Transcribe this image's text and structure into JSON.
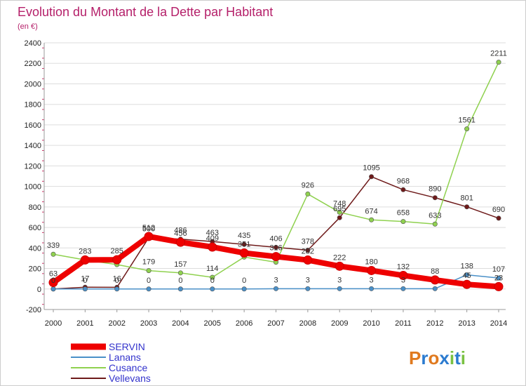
{
  "header": {
    "title": "Evolution du Montant de la Dette par Habitant",
    "subtitle": "(en €)"
  },
  "logo": {
    "text": "Proxiti",
    "colors": [
      "#e07a1f",
      "#2b7bd0",
      "#e07a1f",
      "#2b7bd0",
      "#7ac143",
      "#2b7bd0",
      "#7ac143"
    ]
  },
  "chart_data": {
    "type": "line",
    "title": "Evolution du Montant de la Dette par Habitant",
    "subtitle": "(en €)",
    "xlabel": "",
    "ylabel": "",
    "x": [
      "2000",
      "2001",
      "2002",
      "2003",
      "2004",
      "2005",
      "2006",
      "2007",
      "2008",
      "2009",
      "2010",
      "2011",
      "2012",
      "2013",
      "2014"
    ],
    "ylim": [
      -200,
      2400
    ],
    "yticks": [
      -200,
      0,
      200,
      400,
      600,
      800,
      1000,
      1200,
      1400,
      1600,
      1800,
      2000,
      2200,
      2400
    ],
    "grid": true,
    "legend_position": "bottom-left",
    "series": [
      {
        "name": "SERVIN",
        "color": "#ee0000",
        "values": [
          63,
          283,
          285,
          512,
          456,
          409,
          351,
          316,
          282,
          222,
          180,
          132,
          88,
          45,
          23
        ],
        "labels": [
          "63",
          "283",
          "285",
          "512",
          "456",
          "409",
          "351",
          "316",
          "282",
          "222",
          "180",
          "132",
          "88",
          "45",
          "23"
        ]
      },
      {
        "name": "Lanans",
        "color": "#4a90c8",
        "values": [
          0,
          0,
          0,
          0,
          0,
          0,
          0,
          3,
          3,
          3,
          3,
          3,
          3,
          138,
          107
        ],
        "labels": [
          "0",
          "0",
          "0",
          "0",
          "0",
          "0",
          "0",
          "3",
          "3",
          "3",
          "3",
          "3",
          "",
          "138",
          "107"
        ]
      },
      {
        "name": "Cusance",
        "color": "#8fd14f",
        "values": [
          339,
          283,
          238,
          179,
          157,
          114,
          311,
          261,
          926,
          748,
          674,
          658,
          633,
          1561,
          2211
        ],
        "labels": [
          "339",
          "",
          "",
          "179",
          "157",
          "114",
          "",
          "",
          "926",
          "748",
          "674",
          "658",
          "633",
          "1561",
          "2211"
        ]
      },
      {
        "name": "Vellevans",
        "color": "#6e1a1a",
        "values": [
          0,
          17,
          16,
          500,
          486,
          463,
          435,
          406,
          378,
          695,
          1095,
          968,
          890,
          801,
          690
        ],
        "labels": [
          "0",
          "17",
          "16",
          "500",
          "486",
          "463",
          "435",
          "406",
          "378",
          "695",
          "1095",
          "968",
          "890",
          "801",
          "690"
        ]
      }
    ]
  }
}
